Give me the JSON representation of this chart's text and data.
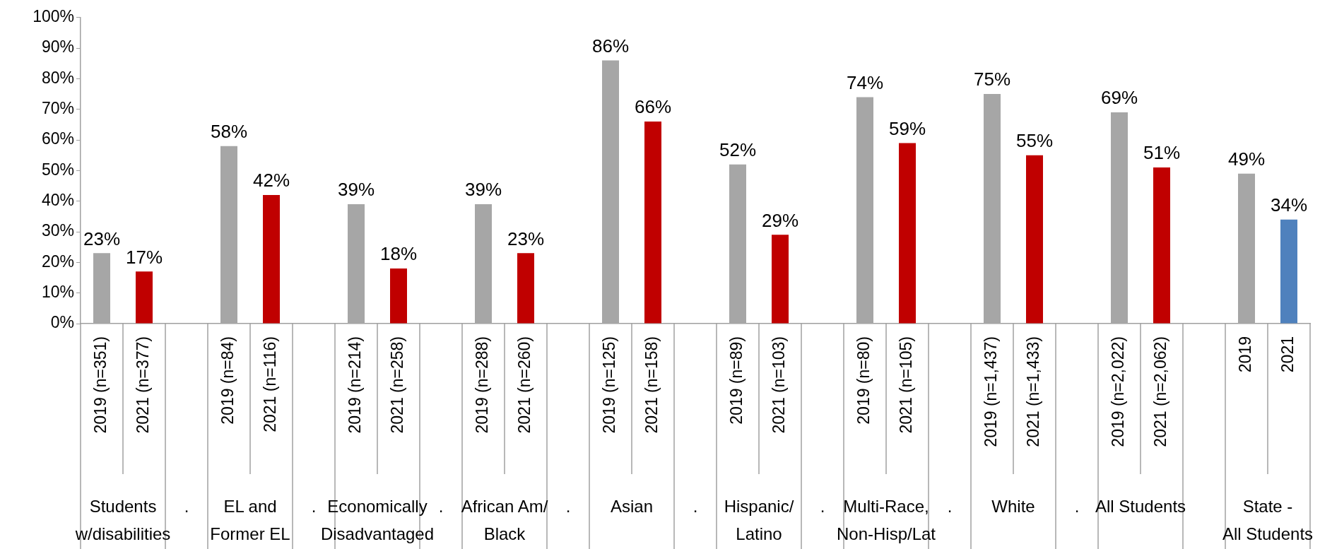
{
  "chart_data": {
    "type": "bar",
    "categories": [
      "2019 (n=351)",
      "2021 (n=377)",
      null,
      "2019 (n=84)",
      "2021 (n=116)",
      null,
      "2019 (n=214)",
      "2021 (n=258)",
      null,
      "2019 (n=288)",
      "2021 (n=260)",
      null,
      "2019 (n=125)",
      "2021 (n=158)",
      null,
      "2019 (n=89)",
      "2021 (n=103)",
      null,
      "2019 (n=80)",
      "2021 (n=105)",
      null,
      "2019 (n=1,437)",
      "2021 (n=1,433)",
      null,
      "2019 (n=2,022)",
      "2021 (n=2,062)",
      null,
      "2019",
      "2021"
    ],
    "values": [
      23,
      17,
      null,
      58,
      42,
      null,
      39,
      18,
      null,
      39,
      23,
      null,
      86,
      66,
      null,
      52,
      29,
      null,
      74,
      59,
      null,
      75,
      55,
      null,
      69,
      51,
      null,
      49,
      34
    ],
    "colors": [
      "#a6a6a6",
      "#c00000",
      null,
      "#a6a6a6",
      "#c00000",
      null,
      "#a6a6a6",
      "#c00000",
      null,
      "#a6a6a6",
      "#c00000",
      null,
      "#a6a6a6",
      "#c00000",
      null,
      "#a6a6a6",
      "#c00000",
      null,
      "#a6a6a6",
      "#c00000",
      null,
      "#a6a6a6",
      "#c00000",
      null,
      "#a6a6a6",
      "#c00000",
      null,
      "#a6a6a6",
      "#4f81bd"
    ],
    "value_labels": [
      "23%",
      "17%",
      null,
      "58%",
      "42%",
      null,
      "39%",
      "18%",
      null,
      "39%",
      "23%",
      null,
      "86%",
      "66%",
      null,
      "52%",
      "29%",
      null,
      "74%",
      "59%",
      null,
      "75%",
      "55%",
      null,
      "69%",
      "51%",
      null,
      "49%",
      "34%"
    ],
    "annotations": [
      "Students\nw/disabilities",
      ".",
      "EL and\nFormer EL",
      ".",
      "Economically\nDisadvantaged",
      ".",
      "African Am/\nBlack",
      ".",
      "Asian",
      ".",
      "Hispanic/\nLatino",
      ".",
      "Multi-Race,\nNon-Hisp/Lat",
      ".",
      "White",
      ".",
      "All Students",
      null,
      "State -\nAll Students"
    ],
    "ylim": [
      0,
      100
    ],
    "yticks": [
      {
        "value": 0,
        "label": "0%"
      },
      {
        "value": 10,
        "label": "10%"
      },
      {
        "value": 20,
        "label": "20%"
      },
      {
        "value": 30,
        "label": "30%"
      },
      {
        "value": 40,
        "label": "40%"
      },
      {
        "value": 50,
        "label": "50%"
      },
      {
        "value": 60,
        "label": "60%"
      },
      {
        "value": 70,
        "label": "70%"
      },
      {
        "value": 80,
        "label": "80%"
      },
      {
        "value": 90,
        "label": "90%"
      },
      {
        "value": 100,
        "label": "100%"
      }
    ]
  }
}
